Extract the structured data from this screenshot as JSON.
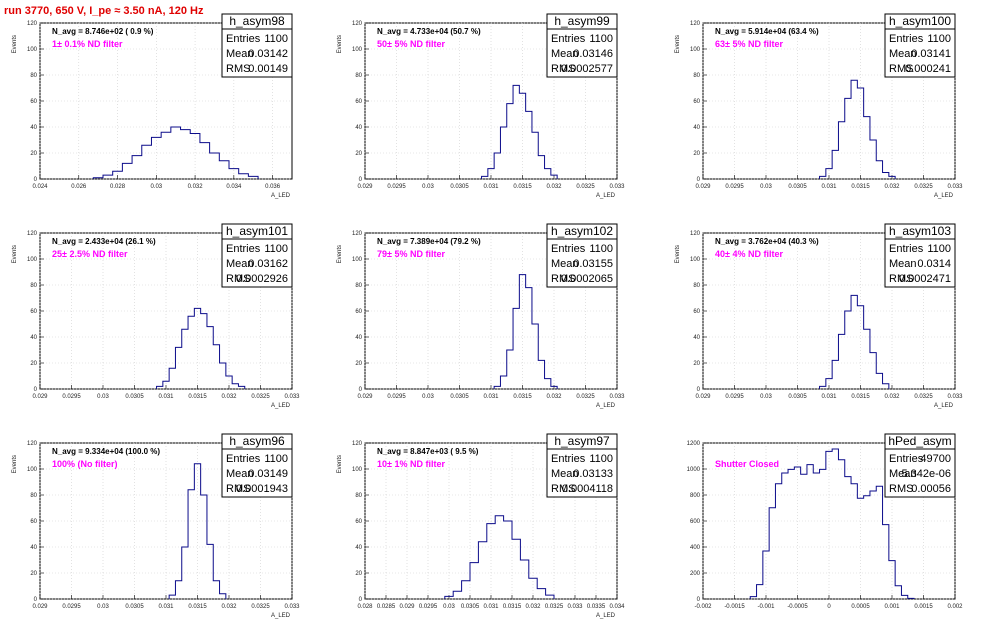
{
  "header": {
    "run_title": "run 3770,   650 V, I_pe ≈ 3.50 nA, 120 Hz",
    "run_color": "#e00000"
  },
  "colors": {
    "hist_line": "#0b0b8a",
    "filter_text": "#ff00ff",
    "grid": "#cfcfcf"
  },
  "chart_data": [
    {
      "type": "histogram",
      "ylabel": "Events",
      "xlabel": "A_LED",
      "name": "h_asym98",
      "navg": "N_avg = 8.746e+02 ( 0.9 %)",
      "filter": "1± 0.1% ND filter",
      "stats": [
        [
          "Entries",
          "1100"
        ],
        [
          "Mean",
          "0.03142"
        ],
        [
          "RMS",
          "0.00149"
        ]
      ],
      "xlim": [
        0.024,
        0.037
      ],
      "ylim": [
        0,
        120
      ],
      "xticks": [
        "0.024",
        "0.026",
        "0.028",
        "0.03",
        "0.032",
        "0.034",
        "0.036"
      ],
      "xtick_values": [
        0.024,
        0.026,
        0.028,
        0.03,
        0.032,
        0.034,
        0.036
      ],
      "yticks": [
        "0",
        "20",
        "40",
        "60",
        "80",
        "100",
        "120"
      ],
      "grid": true,
      "bins": [
        [
          0.027,
          1
        ],
        [
          0.0275,
          3
        ],
        [
          0.028,
          6
        ],
        [
          0.0285,
          12
        ],
        [
          0.029,
          18
        ],
        [
          0.0295,
          26
        ],
        [
          0.03,
          32
        ],
        [
          0.0305,
          36
        ],
        [
          0.031,
          40
        ],
        [
          0.0315,
          38
        ],
        [
          0.032,
          35
        ],
        [
          0.0325,
          28
        ],
        [
          0.033,
          20
        ],
        [
          0.0335,
          14
        ],
        [
          0.034,
          8
        ],
        [
          0.0345,
          4
        ],
        [
          0.035,
          2
        ]
      ]
    },
    {
      "type": "histogram",
      "ylabel": "Events",
      "xlabel": "A_LED",
      "name": "h_asym99",
      "navg": "N_avg = 4.733e+04 (50.7 %)",
      "filter": "50± 5% ND filter",
      "stats": [
        [
          "Entries",
          "1100"
        ],
        [
          "Mean",
          "0.03146"
        ],
        [
          "RMS",
          "0.0002577"
        ]
      ],
      "xlim": [
        0.029,
        0.033
      ],
      "ylim": [
        0,
        120
      ],
      "xticks": [
        "0.029",
        "0.0295",
        "0.03",
        "0.0305",
        "0.031",
        "0.0315",
        "0.032",
        "0.0325",
        "0.033"
      ],
      "xtick_values": [
        0.029,
        0.0295,
        0.03,
        0.0305,
        0.031,
        0.0315,
        0.032,
        0.0325,
        0.033
      ],
      "yticks": [
        "0",
        "20",
        "40",
        "60",
        "80",
        "100",
        "120"
      ],
      "grid": true,
      "bins": [
        [
          0.0309,
          2
        ],
        [
          0.031,
          8
        ],
        [
          0.0311,
          20
        ],
        [
          0.0312,
          40
        ],
        [
          0.0313,
          58
        ],
        [
          0.0314,
          72
        ],
        [
          0.0315,
          66
        ],
        [
          0.0316,
          52
        ],
        [
          0.0317,
          36
        ],
        [
          0.0318,
          18
        ],
        [
          0.0319,
          8
        ],
        [
          0.032,
          3
        ]
      ]
    },
    {
      "type": "histogram",
      "ylabel": "Events",
      "xlabel": "A_LED",
      "name": "h_asym100",
      "navg": "N_avg = 5.914e+04 (63.4 %)",
      "filter": "63± 5% ND filter",
      "stats": [
        [
          "Entries",
          "1100"
        ],
        [
          "Mean",
          "0.03141"
        ],
        [
          "RMS",
          "0.000241"
        ]
      ],
      "xlim": [
        0.029,
        0.033
      ],
      "ylim": [
        0,
        120
      ],
      "xticks": [
        "0.029",
        "0.0295",
        "0.03",
        "0.0305",
        "0.031",
        "0.0315",
        "0.032",
        "0.0325",
        "0.033"
      ],
      "xtick_values": [
        0.029,
        0.0295,
        0.03,
        0.0305,
        0.031,
        0.0315,
        0.032,
        0.0325,
        0.033
      ],
      "yticks": [
        "0",
        "20",
        "40",
        "60",
        "80",
        "100",
        "120"
      ],
      "grid": true,
      "bins": [
        [
          0.0309,
          2
        ],
        [
          0.031,
          8
        ],
        [
          0.0311,
          22
        ],
        [
          0.0312,
          44
        ],
        [
          0.0313,
          62
        ],
        [
          0.0314,
          76
        ],
        [
          0.0315,
          70
        ],
        [
          0.0316,
          48
        ],
        [
          0.0317,
          30
        ],
        [
          0.0318,
          14
        ],
        [
          0.0319,
          5
        ],
        [
          0.032,
          2
        ]
      ]
    },
    {
      "type": "histogram",
      "ylabel": "Events",
      "xlabel": "A_LED",
      "name": "h_asym101",
      "navg": "N_avg = 2.433e+04 (26.1 %)",
      "filter": "25± 2.5% ND filter",
      "stats": [
        [
          "Entries",
          "1100"
        ],
        [
          "Mean",
          "0.03162"
        ],
        [
          "RMS",
          "0.0002926"
        ]
      ],
      "xlim": [
        0.029,
        0.033
      ],
      "ylim": [
        0,
        120
      ],
      "xticks": [
        "0.029",
        "0.0295",
        "0.03",
        "0.0305",
        "0.031",
        "0.0315",
        "0.032",
        "0.0325",
        "0.033"
      ],
      "xtick_values": [
        0.029,
        0.0295,
        0.03,
        0.0305,
        0.031,
        0.0315,
        0.032,
        0.0325,
        0.033
      ],
      "yticks": [
        "0",
        "20",
        "40",
        "60",
        "80",
        "100",
        "120"
      ],
      "grid": true,
      "bins": [
        [
          0.0309,
          2
        ],
        [
          0.031,
          6
        ],
        [
          0.0311,
          16
        ],
        [
          0.0312,
          32
        ],
        [
          0.0313,
          46
        ],
        [
          0.0314,
          56
        ],
        [
          0.0315,
          62
        ],
        [
          0.0316,
          58
        ],
        [
          0.0317,
          48
        ],
        [
          0.0318,
          34
        ],
        [
          0.0319,
          20
        ],
        [
          0.032,
          10
        ],
        [
          0.0321,
          4
        ],
        [
          0.0322,
          2
        ]
      ]
    },
    {
      "type": "histogram",
      "ylabel": "Events",
      "xlabel": "A_LED",
      "name": "h_asym102",
      "navg": "N_avg = 7.389e+04 (79.2 %)",
      "filter": "79± 5% ND filter",
      "stats": [
        [
          "Entries",
          "1100"
        ],
        [
          "Mean",
          "0.03155"
        ],
        [
          "RMS",
          "0.0002065"
        ]
      ],
      "xlim": [
        0.029,
        0.033
      ],
      "ylim": [
        0,
        120
      ],
      "xticks": [
        "0.029",
        "0.0295",
        "0.03",
        "0.0305",
        "0.031",
        "0.0315",
        "0.032",
        "0.0325",
        "0.033"
      ],
      "xtick_values": [
        0.029,
        0.0295,
        0.03,
        0.0305,
        0.031,
        0.0315,
        0.032,
        0.0325,
        0.033
      ],
      "yticks": [
        "0",
        "20",
        "40",
        "60",
        "80",
        "100",
        "120"
      ],
      "grid": true,
      "bins": [
        [
          0.0311,
          2
        ],
        [
          0.0312,
          10
        ],
        [
          0.0313,
          30
        ],
        [
          0.0314,
          62
        ],
        [
          0.0315,
          88
        ],
        [
          0.0316,
          78
        ],
        [
          0.0317,
          50
        ],
        [
          0.0318,
          22
        ],
        [
          0.0319,
          8
        ],
        [
          0.032,
          2
        ]
      ]
    },
    {
      "type": "histogram",
      "ylabel": "Events",
      "xlabel": "A_LED",
      "name": "h_asym103",
      "navg": "N_avg = 3.762e+04 (40.3 %)",
      "filter": "40± 4% ND filter",
      "stats": [
        [
          "Entries",
          "1100"
        ],
        [
          "Mean",
          "0.0314"
        ],
        [
          "RMS",
          "0.0002471"
        ]
      ],
      "xlim": [
        0.029,
        0.033
      ],
      "ylim": [
        0,
        120
      ],
      "xticks": [
        "0.029",
        "0.0295",
        "0.03",
        "0.0305",
        "0.031",
        "0.0315",
        "0.032",
        "0.0325",
        "0.033"
      ],
      "xtick_values": [
        0.029,
        0.0295,
        0.03,
        0.0305,
        0.031,
        0.0315,
        0.032,
        0.0325,
        0.033
      ],
      "yticks": [
        "0",
        "20",
        "40",
        "60",
        "80",
        "100",
        "120"
      ],
      "grid": true,
      "bins": [
        [
          0.0309,
          2
        ],
        [
          0.031,
          8
        ],
        [
          0.0311,
          22
        ],
        [
          0.0312,
          42
        ],
        [
          0.0313,
          60
        ],
        [
          0.0314,
          72
        ],
        [
          0.0315,
          64
        ],
        [
          0.0316,
          46
        ],
        [
          0.0317,
          28
        ],
        [
          0.0318,
          12
        ],
        [
          0.0319,
          4
        ]
      ]
    },
    {
      "type": "histogram",
      "ylabel": "Events",
      "xlabel": "A_LED",
      "name": "h_asym96",
      "navg": "N_avg = 9.334e+04 (100.0 %)",
      "filter": "100% (No filter)",
      "stats": [
        [
          "Entries",
          "1100"
        ],
        [
          "Mean",
          "0.03149"
        ],
        [
          "RMS",
          "0.0001943"
        ]
      ],
      "xlim": [
        0.029,
        0.033
      ],
      "ylim": [
        0,
        120
      ],
      "xticks": [
        "0.029",
        "0.0295",
        "0.03",
        "0.0305",
        "0.031",
        "0.0315",
        "0.032",
        "0.0325",
        "0.033"
      ],
      "xtick_values": [
        0.029,
        0.0295,
        0.03,
        0.0305,
        0.031,
        0.0315,
        0.032,
        0.0325,
        0.033
      ],
      "yticks": [
        "0",
        "20",
        "40",
        "60",
        "80",
        "100",
        "120"
      ],
      "grid": true,
      "bins": [
        [
          0.0311,
          3
        ],
        [
          0.0312,
          14
        ],
        [
          0.0313,
          40
        ],
        [
          0.0314,
          84
        ],
        [
          0.0315,
          104
        ],
        [
          0.0316,
          80
        ],
        [
          0.0317,
          42
        ],
        [
          0.0318,
          14
        ],
        [
          0.0319,
          4
        ]
      ]
    },
    {
      "type": "histogram",
      "ylabel": "Events",
      "xlabel": "A_LED",
      "name": "h_asym97",
      "navg": "N_avg = 8.847e+03 ( 9.5 %)",
      "filter": "10± 1% ND filter",
      "stats": [
        [
          "Entries",
          "1100"
        ],
        [
          "Mean",
          "0.03133"
        ],
        [
          "RMS",
          "0.0004118"
        ]
      ],
      "xlim": [
        0.028,
        0.034
      ],
      "ylim": [
        0,
        120
      ],
      "xticks": [
        "0.028",
        "0.0285",
        "0.029",
        "0.0295",
        "0.03",
        "0.0305",
        "0.031",
        "0.0315",
        "0.032",
        "0.0325",
        "0.033",
        "0.0335",
        "0.034"
      ],
      "xtick_values": [
        0.028,
        0.0285,
        0.029,
        0.0295,
        0.03,
        0.0305,
        0.031,
        0.0315,
        0.032,
        0.0325,
        0.033,
        0.0335,
        0.034
      ],
      "yticks": [
        "0",
        "20",
        "40",
        "60",
        "80",
        "100",
        "120"
      ],
      "grid": true,
      "bins": [
        [
          0.03,
          2
        ],
        [
          0.0302,
          6
        ],
        [
          0.0304,
          14
        ],
        [
          0.0306,
          28
        ],
        [
          0.0308,
          44
        ],
        [
          0.031,
          58
        ],
        [
          0.0312,
          64
        ],
        [
          0.0314,
          60
        ],
        [
          0.0316,
          46
        ],
        [
          0.0318,
          30
        ],
        [
          0.032,
          16
        ],
        [
          0.0322,
          8
        ],
        [
          0.0324,
          3
        ]
      ]
    },
    {
      "type": "histogram",
      "ylabel": "",
      "xlabel": "",
      "name": "hPed_asym",
      "navg": "",
      "filter": "Shutter Closed",
      "stats": [
        [
          "Entries",
          "49700"
        ],
        [
          "Mean",
          "5.342e-06"
        ],
        [
          "RMS",
          "0.00056"
        ]
      ],
      "xlim": [
        -0.002,
        0.002
      ],
      "ylim": [
        0,
        1300
      ],
      "xticks": [
        "-0.002",
        "-0.0015",
        "-0.001",
        "-0.0005",
        "0",
        "0.0005",
        "0.001",
        "0.0015",
        "0.002"
      ],
      "xtick_values": [
        -0.002,
        -0.0015,
        -0.001,
        -0.0005,
        0,
        0.0005,
        0.001,
        0.0015,
        0.002
      ],
      "yticks": [
        "0",
        "200",
        "400",
        "600",
        "800",
        "1000",
        "1200"
      ],
      "grid": true,
      "bins": [
        [
          -0.0012,
          20
        ],
        [
          -0.0011,
          120
        ],
        [
          -0.001,
          400
        ],
        [
          -0.0009,
          760
        ],
        [
          -0.0008,
          960
        ],
        [
          -0.0007,
          1050
        ],
        [
          -0.0006,
          1080
        ],
        [
          -0.0005,
          1100
        ],
        [
          -0.0004,
          1040
        ],
        [
          -0.0003,
          1120
        ],
        [
          -0.0002,
          1050
        ],
        [
          -0.0001,
          1080
        ],
        [
          0.0,
          1230
        ],
        [
          0.0001,
          1250
        ],
        [
          0.0002,
          1160
        ],
        [
          0.0003,
          1020
        ],
        [
          0.0004,
          960
        ],
        [
          0.0005,
          840
        ],
        [
          0.0006,
          860
        ],
        [
          0.0007,
          900
        ],
        [
          0.0008,
          940
        ],
        [
          0.0009,
          620
        ],
        [
          0.001,
          320
        ],
        [
          0.0011,
          110
        ],
        [
          0.0012,
          30
        ],
        [
          0.0013,
          5
        ]
      ]
    }
  ]
}
